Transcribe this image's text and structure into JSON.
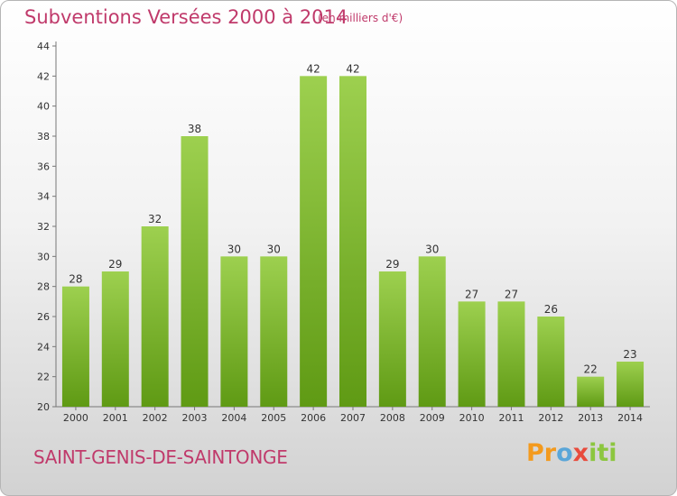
{
  "title": "Subventions Versées 2000 à 2014",
  "subtitle": "(en milliers d'€)",
  "commune": "SAINT-GENIS-DE-SAINTONGE",
  "logo": {
    "text": "Proxiti"
  },
  "colors": {
    "title": "#c03a6b",
    "bar_top": "#9dd04f",
    "bar_bottom": "#5f9a14",
    "axis": "#555555"
  },
  "chart_data": {
    "type": "bar",
    "title": "Subventions Versées 2000 à 2014",
    "xlabel": "",
    "ylabel": "",
    "categories": [
      "2000",
      "2001",
      "2002",
      "2003",
      "2004",
      "2005",
      "2006",
      "2007",
      "2008",
      "2009",
      "2010",
      "2011",
      "2012",
      "2013",
      "2014"
    ],
    "values": [
      28,
      29,
      32,
      38,
      30,
      30,
      42,
      42,
      29,
      30,
      27,
      27,
      26,
      22,
      23
    ],
    "ylim": [
      20,
      44
    ],
    "yticks": [
      20,
      22,
      24,
      26,
      28,
      30,
      32,
      34,
      36,
      38,
      40,
      42,
      44
    ],
    "grid": false,
    "legend": "none"
  }
}
